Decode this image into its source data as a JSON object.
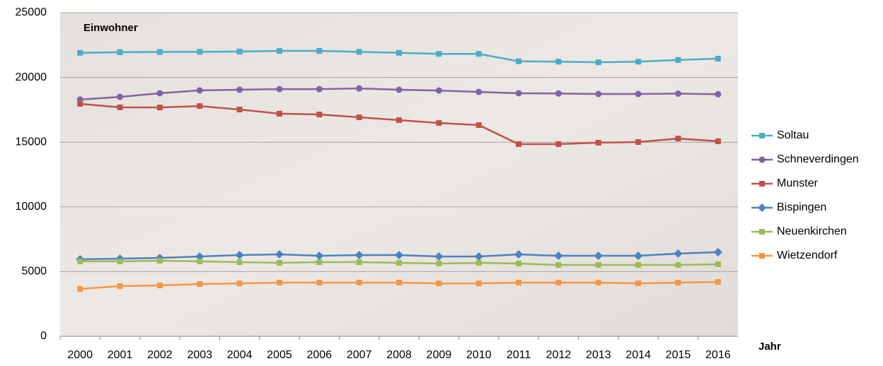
{
  "chart_data": {
    "type": "line",
    "annotation": "Einwohner",
    "x_label": "Jahr",
    "categories": [
      "2000",
      "2001",
      "2002",
      "2003",
      "2004",
      "2005",
      "2006",
      "2007",
      "2008",
      "2009",
      "2010",
      "2011",
      "2012",
      "2013",
      "2014",
      "2015",
      "2016"
    ],
    "ylim": [
      0,
      25000
    ],
    "yticks": [
      0,
      5000,
      10000,
      15000,
      20000,
      25000
    ],
    "grid": true,
    "legend": "right",
    "series": [
      {
        "name": "Soltau",
        "color": "#4bacc6",
        "marker": "square",
        "values": [
          21900,
          21950,
          21970,
          21980,
          22000,
          22050,
          22050,
          21980,
          21900,
          21820,
          21820,
          21250,
          21220,
          21170,
          21220,
          21350,
          21450
        ]
      },
      {
        "name": "Schneverdingen",
        "color": "#8064a2",
        "marker": "circle",
        "values": [
          18290,
          18500,
          18780,
          19000,
          19050,
          19100,
          19100,
          19150,
          19050,
          18990,
          18880,
          18780,
          18760,
          18720,
          18720,
          18750,
          18700
        ]
      },
      {
        "name": "Munster",
        "color": "#c0504d",
        "marker": "square",
        "values": [
          17960,
          17690,
          17680,
          17790,
          17520,
          17200,
          17140,
          16920,
          16700,
          16480,
          16320,
          14850,
          14850,
          14960,
          15010,
          15280,
          15070
        ]
      },
      {
        "name": "Bispingen",
        "color": "#4f81bd",
        "marker": "diamond",
        "values": [
          5950,
          6000,
          6060,
          6170,
          6280,
          6330,
          6220,
          6280,
          6280,
          6170,
          6170,
          6330,
          6220,
          6220,
          6220,
          6390,
          6500
        ]
      },
      {
        "name": "Neuenkirchen",
        "color": "#9bbb59",
        "marker": "square",
        "values": [
          5790,
          5790,
          5840,
          5790,
          5730,
          5680,
          5730,
          5730,
          5680,
          5620,
          5680,
          5620,
          5510,
          5510,
          5510,
          5510,
          5570
        ]
      },
      {
        "name": "Wietzendorf",
        "color": "#f79646",
        "marker": "square",
        "values": [
          3660,
          3880,
          3930,
          4040,
          4090,
          4150,
          4150,
          4150,
          4150,
          4090,
          4090,
          4150,
          4150,
          4150,
          4090,
          4150,
          4200
        ]
      }
    ]
  }
}
